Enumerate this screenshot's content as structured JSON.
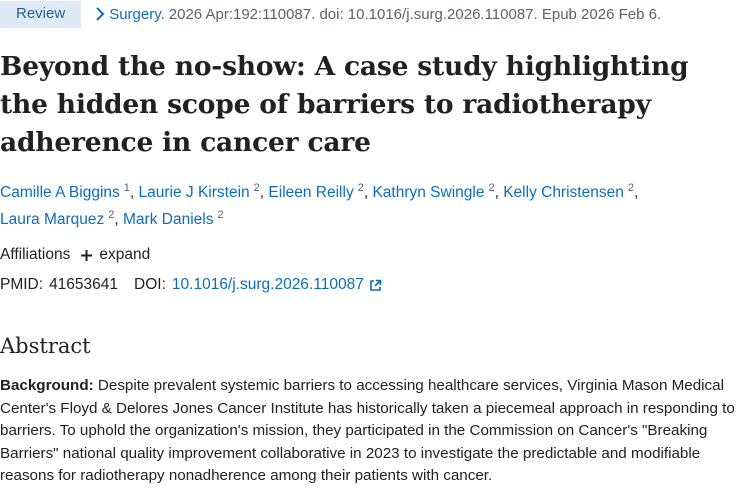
{
  "header": {
    "badge": "Review",
    "journal": "Surgery.",
    "citation": "2026 Apr:192:110087. doi: 10.1016/j.surg.2026.110087. Epub 2026 Feb 6."
  },
  "title": "Beyond the no-show: A case study highlighting the hidden scope of barriers to radiotherapy adherence in cancer care",
  "authors": [
    {
      "name": "Camille A Biggins",
      "aff": "1"
    },
    {
      "name": "Laurie J Kirstein",
      "aff": "2"
    },
    {
      "name": "Eileen Reilly",
      "aff": "2"
    },
    {
      "name": "Kathryn Swingle",
      "aff": "2"
    },
    {
      "name": "Kelly Christensen",
      "aff": "2"
    },
    {
      "name": "Laura Marquez",
      "aff": "2"
    },
    {
      "name": "Mark Daniels",
      "aff": "2"
    }
  ],
  "affiliations": {
    "label": "Affiliations",
    "expand": "expand"
  },
  "identifiers": {
    "pmid_label": "PMID:",
    "pmid": "41653641",
    "doi_label": "DOI:",
    "doi": "10.1016/j.surg.2026.110087"
  },
  "abstract": {
    "heading": "Abstract",
    "background_label": "Background:",
    "background_text": "Despite prevalent systemic barriers to accessing healthcare services, Virginia Mason Medical Center's Floyd & Delores Jones Cancer Institute has historically taken a piecemeal approach in responding to barriers. To uphold the organization's mission, they participated in the Commission on Cancer's \"Breaking Barriers\" national quality improvement collaborative in 2023 to investigate the predictable and modifiable reasons for radiotherapy nonadherence among their patients with cancer."
  },
  "colors": {
    "link": "#0b6ebd",
    "badge_bg": "#dcebf6",
    "text": "#212121"
  }
}
